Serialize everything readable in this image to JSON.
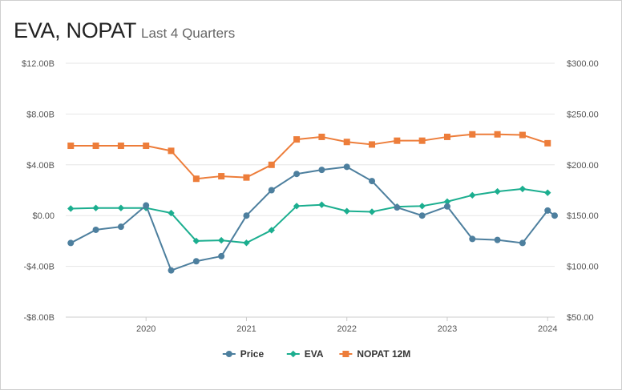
{
  "header": {
    "title": "EVA, NOPAT",
    "subtitle": "Last 4 Quarters"
  },
  "chart_data": {
    "type": "line",
    "title": "EVA, NOPAT",
    "subtitle": "Last 4 Quarters",
    "grid": true,
    "legend_position": "bottom-center",
    "x_ticks": [
      "2020",
      "2021",
      "2022",
      "2023",
      "2024"
    ],
    "x_range": [
      2019.2,
      2024.07
    ],
    "y_left": {
      "range": [
        -8,
        12
      ],
      "ticks": [
        -8,
        -4,
        0,
        4,
        8,
        12
      ],
      "tick_labels": [
        "-$8.00B",
        "-$4.00B",
        "$0.00",
        "$4.00B",
        "$8.00B",
        "$12.00B"
      ]
    },
    "y_right": {
      "range": [
        50,
        300
      ],
      "ticks": [
        50,
        100,
        150,
        200,
        250,
        300
      ],
      "tick_labels": [
        "$50.00",
        "$100.00",
        "$150.00",
        "$200.00",
        "$250.00",
        "$300.00"
      ]
    },
    "x": [
      2019.25,
      2019.5,
      2019.75,
      2020.0,
      2020.25,
      2020.5,
      2020.75,
      2021.0,
      2021.25,
      2021.5,
      2021.75,
      2022.0,
      2022.25,
      2022.5,
      2022.75,
      2023.0,
      2023.25,
      2023.5,
      2023.75,
      2024.0,
      2024.07
    ],
    "series": [
      {
        "name": "Price",
        "axis": "right",
        "color": "#4d7f9e",
        "marker": "circle",
        "values": [
          123,
          136,
          139,
          160,
          96,
          105,
          110,
          150,
          175,
          191,
          195,
          198,
          184,
          158,
          150,
          159,
          127,
          126,
          123,
          155,
          150
        ]
      },
      {
        "name": "EVA",
        "axis": "left",
        "color": "#1bae8f",
        "marker": "diamond",
        "values": [
          0.55,
          0.6,
          0.6,
          0.6,
          0.2,
          -2.0,
          -1.95,
          -2.15,
          -1.15,
          0.75,
          0.85,
          0.35,
          0.3,
          0.7,
          0.75,
          1.1,
          1.6,
          1.9,
          2.1,
          1.8,
          null
        ]
      },
      {
        "name": "NOPAT 12M",
        "axis": "left",
        "color": "#ed7d3a",
        "marker": "square",
        "values": [
          5.5,
          5.5,
          5.5,
          5.5,
          5.1,
          2.9,
          3.1,
          3.0,
          4.0,
          6.0,
          6.2,
          5.8,
          5.6,
          5.9,
          5.9,
          6.2,
          6.4,
          6.4,
          6.35,
          5.7,
          null
        ]
      }
    ]
  }
}
